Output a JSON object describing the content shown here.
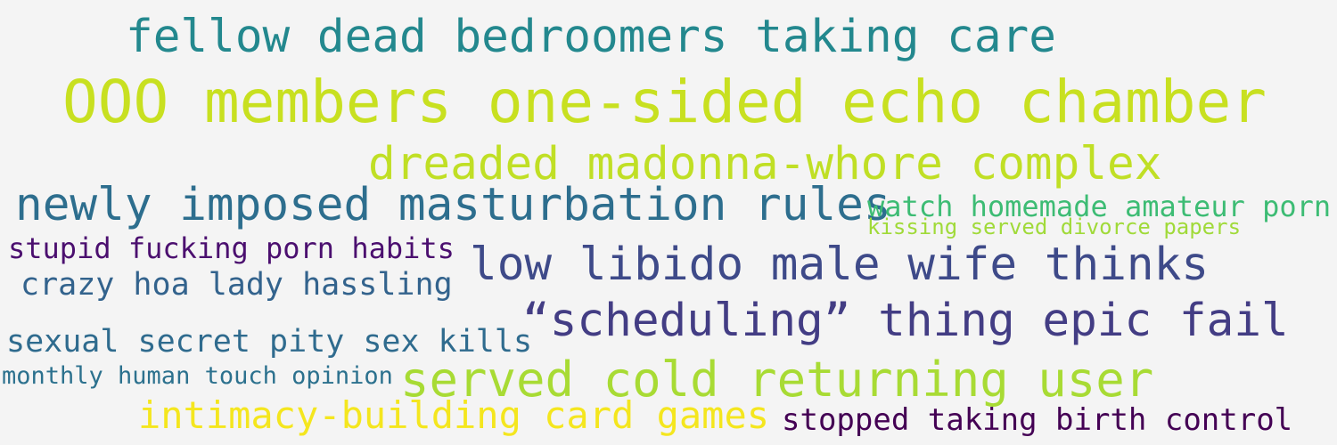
{
  "cloud": {
    "background": "#f4f4f4",
    "phrases": [
      {
        "text": "fellow dead bedroomers taking care",
        "color": "#23888e"
      },
      {
        "text": "OOO members one-sided echo chamber",
        "color": "#c8e020"
      },
      {
        "text": "dreaded madonna-whore complex",
        "color": "#c0df25"
      },
      {
        "text": "newly imposed masturbation rules",
        "color": "#2d6e8e"
      },
      {
        "text": "watch homemade amateur porn",
        "color": "#3dbc74"
      },
      {
        "text": "kissing served divorce papers",
        "color": "#a0da39"
      },
      {
        "text": "stupid fucking porn habits",
        "color": "#4b0f6f"
      },
      {
        "text": "low libido male wife thinks",
        "color": "#3e4a89"
      },
      {
        "text": "crazy hoa lady hassling",
        "color": "#33638d"
      },
      {
        "text": "“scheduling” thing epic fail",
        "color": "#433d84"
      },
      {
        "text": "sexual secret pity sex kills",
        "color": "#2f6b8e"
      },
      {
        "text": "monthly human touch opinion",
        "color": "#2c718e"
      },
      {
        "text": "served cold returning user",
        "color": "#a8db34"
      },
      {
        "text": "intimacy-building card games",
        "color": "#f4e61e"
      },
      {
        "text": "stopped taking birth control",
        "color": "#440154"
      }
    ]
  }
}
